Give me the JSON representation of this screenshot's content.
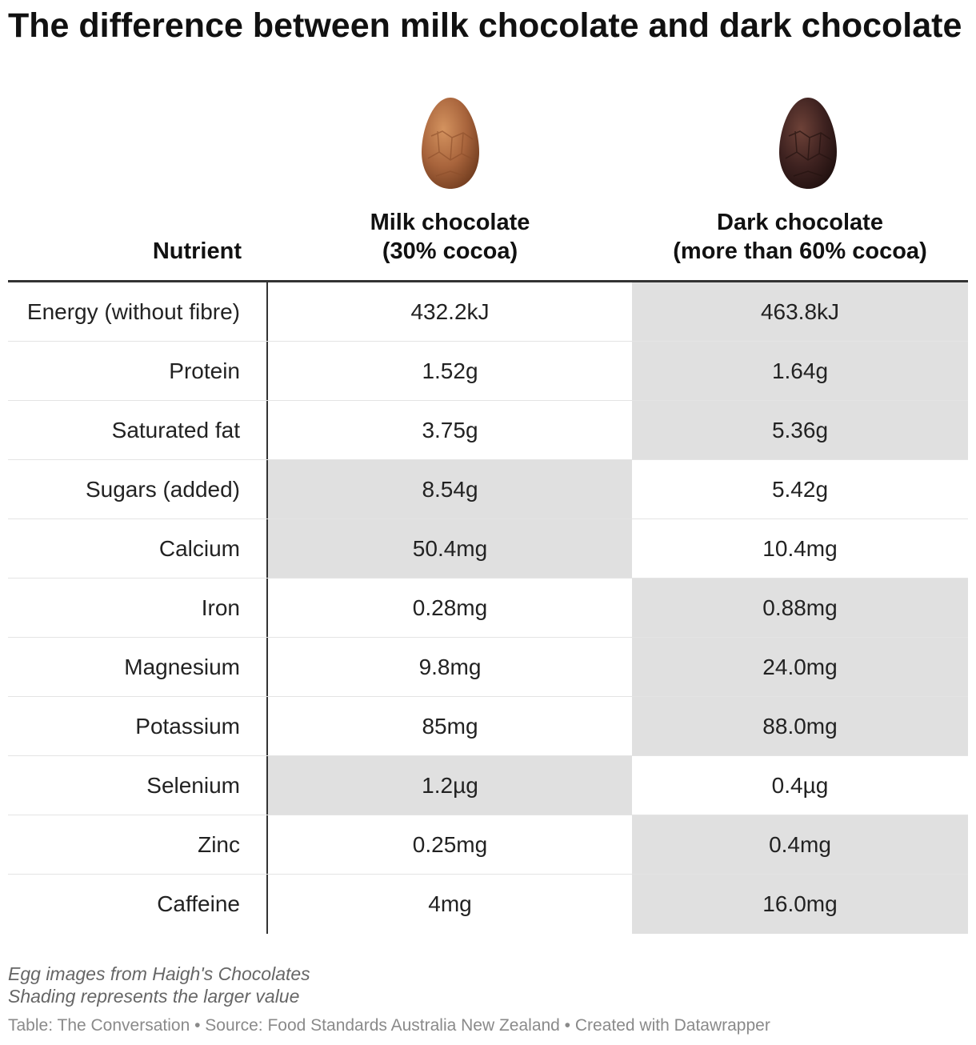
{
  "chart_data": {
    "type": "table",
    "title": "The difference between milk chocolate and dark chocolate",
    "columns": [
      "Nutrient",
      "Milk chocolate (30% cocoa)",
      "Dark chocolate (more than 60% cocoa)"
    ],
    "header": {
      "nutrient": "Nutrient",
      "milk_line1": "Milk chocolate",
      "milk_line2": "(30% cocoa)",
      "dark_line1": "Dark chocolate",
      "dark_line2": "(more than 60% cocoa)"
    },
    "rows": [
      {
        "nutrient": "Energy (without fibre)",
        "milk": "432.2kJ",
        "dark": "463.8kJ",
        "larger": "dark"
      },
      {
        "nutrient": "Protein",
        "milk": "1.52g",
        "dark": "1.64g",
        "larger": "dark"
      },
      {
        "nutrient": "Saturated fat",
        "milk": "3.75g",
        "dark": "5.36g",
        "larger": "dark"
      },
      {
        "nutrient": "Sugars (added)",
        "milk": "8.54g",
        "dark": "5.42g",
        "larger": "milk"
      },
      {
        "nutrient": "Calcium",
        "milk": "50.4mg",
        "dark": "10.4mg",
        "larger": "milk"
      },
      {
        "nutrient": "Iron",
        "milk": "0.28mg",
        "dark": "0.88mg",
        "larger": "dark"
      },
      {
        "nutrient": "Magnesium",
        "milk": "9.8mg",
        "dark": "24.0mg",
        "larger": "dark"
      },
      {
        "nutrient": "Potassium",
        "milk": "85mg",
        "dark": "88.0mg",
        "larger": "dark"
      },
      {
        "nutrient": "Selenium",
        "milk": "1.2µg",
        "dark": "0.4µg",
        "larger": "milk"
      },
      {
        "nutrient": "Zinc",
        "milk": "0.25mg",
        "dark": "0.4mg",
        "larger": "dark"
      },
      {
        "nutrient": "Caffeine",
        "milk": "4mg",
        "dark": "16.0mg",
        "larger": "dark"
      }
    ],
    "shading_color": "#e0e0e0",
    "notes": [
      "Egg images from Haigh's Chocolates",
      "Shading represents the larger value"
    ],
    "footer": "Table: The Conversation • Source: Food Standards Australia New Zealand • Created with Datawrapper"
  },
  "icons": [
    "milk-chocolate-egg-icon",
    "dark-chocolate-egg-icon"
  ],
  "colors": {
    "milk_egg": "#a8643c",
    "dark_egg": "#3e2220"
  }
}
